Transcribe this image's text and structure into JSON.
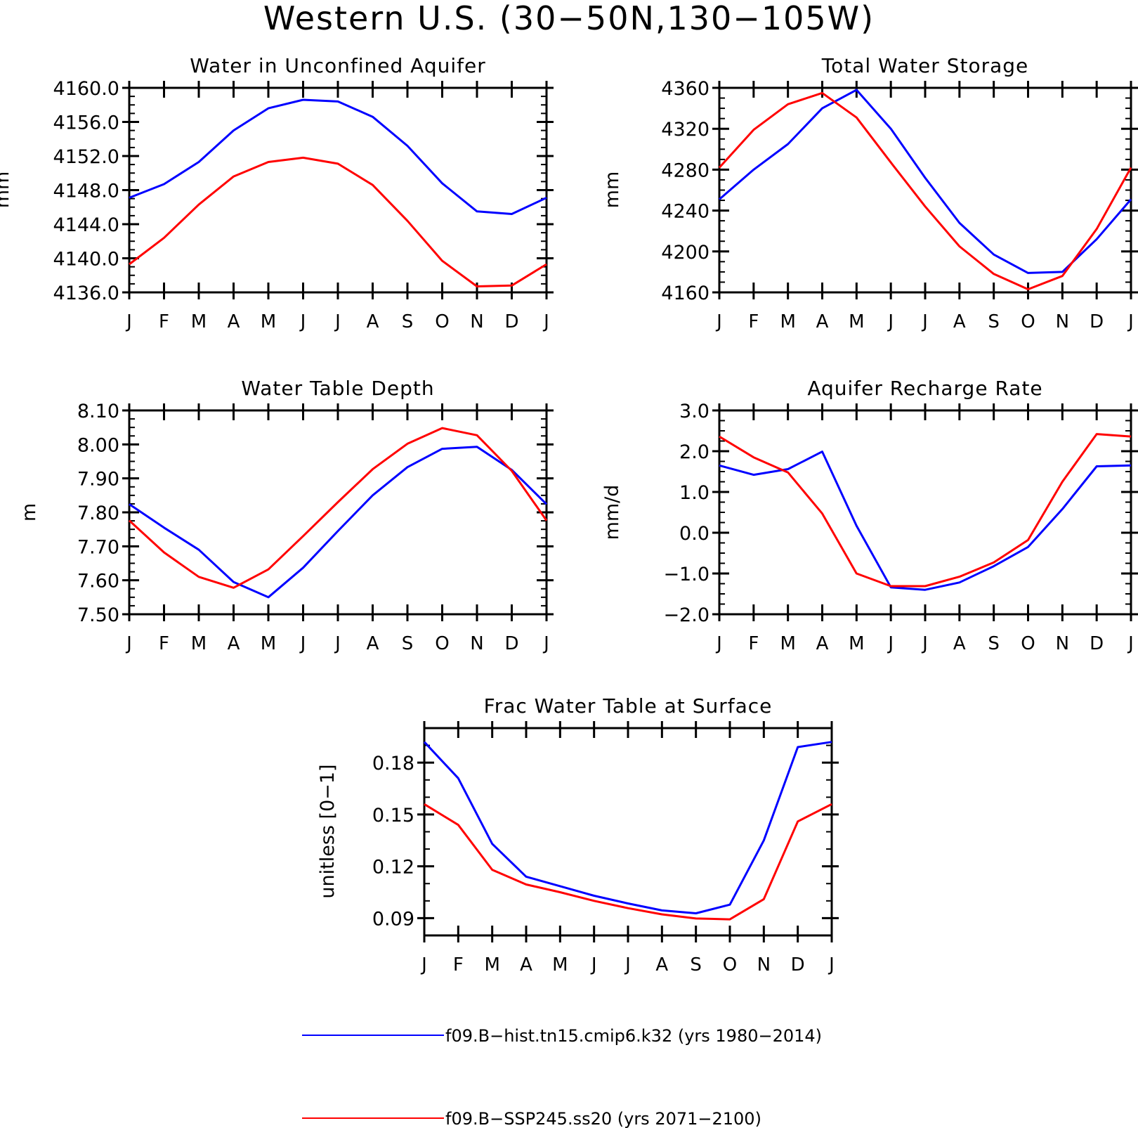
{
  "figure": {
    "title": "Western U.S. (30−50N,130−105W)",
    "months": [
      "J",
      "F",
      "M",
      "A",
      "M",
      "J",
      "J",
      "A",
      "S",
      "O",
      "N",
      "D",
      "J"
    ]
  },
  "series_meta": [
    {
      "name": "f09.B−hist.tn15.cmip6.k32 (yrs 1980−2014)",
      "color": "#0000ff"
    },
    {
      "name": "f09.B−SSP245.ss20 (yrs 2071−2100)",
      "color": "#ff0000"
    }
  ],
  "chart_data": [
    {
      "type": "line",
      "title": "Water in Unconfined Aquifer",
      "xlabel": "",
      "ylabel": "mm",
      "x": [
        "J",
        "F",
        "M",
        "A",
        "M",
        "J",
        "J",
        "A",
        "S",
        "O",
        "N",
        "D",
        "J"
      ],
      "ylim": [
        4136.0,
        4160.0
      ],
      "yticks": [
        "4136.0",
        "4140.0",
        "4144.0",
        "4148.0",
        "4152.0",
        "4156.0",
        "4160.0"
      ],
      "ytick_values": [
        4136,
        4140,
        4144,
        4148,
        4152,
        4156,
        4160
      ],
      "yminor": 1.0,
      "series": [
        {
          "name": "f09.B−hist.tn15.cmip6.k32 (yrs 1980−2014)",
          "color": "#0000ff",
          "values": [
            4147.1,
            4148.7,
            4151.3,
            4155.0,
            4157.6,
            4158.6,
            4158.4,
            4156.6,
            4153.2,
            4148.8,
            4145.5,
            4145.2,
            4147.1
          ]
        },
        {
          "name": "f09.B−SSP245.ss20 (yrs 2071−2100)",
          "color": "#ff0000",
          "values": [
            4139.3,
            4142.4,
            4146.3,
            4149.6,
            4151.3,
            4151.8,
            4151.1,
            4148.6,
            4144.4,
            4139.7,
            4136.7,
            4136.8,
            4139.3
          ]
        }
      ]
    },
    {
      "type": "line",
      "title": "Total Water Storage",
      "xlabel": "",
      "ylabel": "mm",
      "x": [
        "J",
        "F",
        "M",
        "A",
        "M",
        "J",
        "J",
        "A",
        "S",
        "O",
        "N",
        "D",
        "J"
      ],
      "ylim": [
        4160,
        4360
      ],
      "yticks": [
        "4160",
        "4200",
        "4240",
        "4280",
        "4320",
        "4360"
      ],
      "ytick_values": [
        4160,
        4200,
        4240,
        4280,
        4320,
        4360
      ],
      "yminor": 10,
      "series": [
        {
          "name": "f09.B−hist.tn15.cmip6.k32 (yrs 1980−2014)",
          "color": "#0000ff",
          "values": [
            4251,
            4280,
            4305,
            4340,
            4358,
            4320,
            4272,
            4228,
            4197,
            4179,
            4180,
            4212,
            4251
          ]
        },
        {
          "name": "f09.B−SSP245.ss20 (yrs 2071−2100)",
          "color": "#ff0000",
          "values": [
            4282,
            4319,
            4344,
            4355,
            4331,
            4287,
            4244,
            4205,
            4178,
            4163,
            4176,
            4222,
            4282
          ]
        }
      ]
    },
    {
      "type": "line",
      "title": "Water Table Depth",
      "xlabel": "",
      "ylabel": "m",
      "x": [
        "J",
        "F",
        "M",
        "A",
        "M",
        "J",
        "J",
        "A",
        "S",
        "O",
        "N",
        "D",
        "J"
      ],
      "ylim": [
        7.5,
        8.1
      ],
      "yticks": [
        "7.50",
        "7.60",
        "7.70",
        "7.80",
        "7.90",
        "8.00",
        "8.10"
      ],
      "ytick_values": [
        7.5,
        7.6,
        7.7,
        7.8,
        7.9,
        8.0,
        8.1
      ],
      "yminor": 0.025,
      "series": [
        {
          "name": "f09.B−hist.tn15.cmip6.k32 (yrs 1980−2014)",
          "color": "#0000ff",
          "values": [
            7.824,
            7.755,
            7.69,
            7.595,
            7.55,
            7.637,
            7.745,
            7.85,
            7.933,
            7.987,
            7.993,
            7.925,
            7.824
          ]
        },
        {
          "name": "f09.B−SSP245.ss20 (yrs 2071−2100)",
          "color": "#ff0000",
          "values": [
            7.776,
            7.682,
            7.61,
            7.578,
            7.632,
            7.73,
            7.83,
            7.927,
            8.002,
            8.048,
            8.027,
            7.922,
            7.776
          ]
        }
      ]
    },
    {
      "type": "line",
      "title": "Aquifer Recharge Rate",
      "xlabel": "",
      "ylabel": "mm/d",
      "x": [
        "J",
        "F",
        "M",
        "A",
        "M",
        "J",
        "J",
        "A",
        "S",
        "O",
        "N",
        "D",
        "J"
      ],
      "ylim": [
        -2.0,
        3.0
      ],
      "yticks": [
        "−2.0",
        "−1.0",
        "0.0",
        "1.0",
        "2.0",
        "3.0"
      ],
      "ytick_values": [
        -2,
        -1,
        0,
        1,
        2,
        3
      ],
      "yminor": 0.25,
      "series": [
        {
          "name": "f09.B−hist.tn15.cmip6.k32 (yrs 1980−2014)",
          "color": "#0000ff",
          "values": [
            1.65,
            1.42,
            1.56,
            1.99,
            0.17,
            -1.34,
            -1.4,
            -1.22,
            -0.82,
            -0.35,
            0.58,
            1.63,
            1.65
          ]
        },
        {
          "name": "f09.B−SSP245.ss20 (yrs 2071−2100)",
          "color": "#ff0000",
          "values": [
            2.36,
            1.85,
            1.48,
            0.47,
            -1.0,
            -1.31,
            -1.31,
            -1.08,
            -0.73,
            -0.18,
            1.25,
            2.42,
            2.36
          ]
        }
      ]
    },
    {
      "type": "line",
      "title": "Frac Water Table at Surface",
      "xlabel": "",
      "ylabel": "unitless [0−1]",
      "x": [
        "J",
        "F",
        "M",
        "A",
        "M",
        "J",
        "J",
        "A",
        "S",
        "O",
        "N",
        "D",
        "J"
      ],
      "ylim": [
        0.08,
        0.2
      ],
      "yticks": [
        "0.09",
        "0.12",
        "0.15",
        "0.18"
      ],
      "ytick_values": [
        0.09,
        0.12,
        0.15,
        0.18
      ],
      "yminor": 0.01,
      "series": [
        {
          "name": "f09.B−hist.tn15.cmip6.k32 (yrs 1980−2014)",
          "color": "#0000ff",
          "values": [
            0.192,
            0.171,
            0.133,
            0.114,
            0.1085,
            0.103,
            0.0985,
            0.0945,
            0.0928,
            0.0978,
            0.135,
            0.189,
            0.192
          ]
        },
        {
          "name": "f09.B−SSP245.ss20 (yrs 2071−2100)",
          "color": "#ff0000",
          "values": [
            0.156,
            0.144,
            0.118,
            0.1095,
            0.105,
            0.1,
            0.0958,
            0.0922,
            0.0898,
            0.0893,
            0.101,
            0.146,
            0.156
          ]
        }
      ]
    }
  ]
}
